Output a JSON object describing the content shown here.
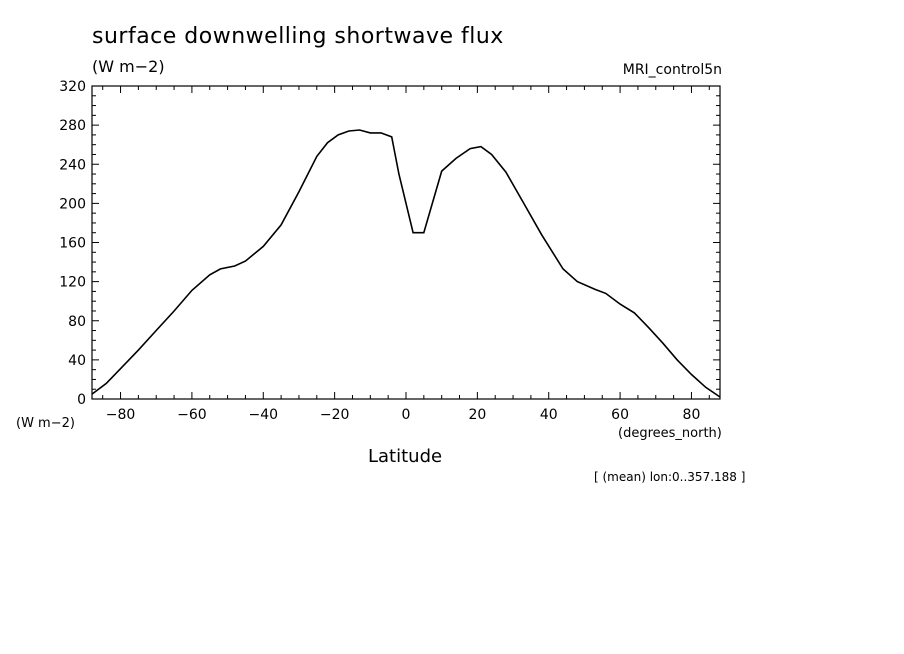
{
  "header": {
    "title": "surface downwelling shortwave flux",
    "units": "(W m−2)",
    "model": "MRI_control5n",
    "units_left": "(W m−2)",
    "x_units": "(degrees_north)",
    "note": "[ (mean) lon:0..357.188 ]"
  },
  "chart_data": {
    "type": "line",
    "title": "surface downwelling shortwave flux",
    "xlabel": "Latitude",
    "ylabel": "(W m−2)",
    "xlim": [
      -88,
      88
    ],
    "ylim": [
      0,
      320
    ],
    "xticks": [
      -80,
      -60,
      -40,
      -20,
      0,
      20,
      40,
      60,
      80
    ],
    "xtick_labels": [
      "−80",
      "−60",
      "−40",
      "−20",
      "0",
      "20",
      "40",
      "60",
      "80"
    ],
    "yticks": [
      0,
      40,
      80,
      120,
      160,
      200,
      240,
      280,
      320
    ],
    "ytick_labels": [
      "0",
      "40",
      "80",
      "120",
      "160",
      "200",
      "240",
      "280",
      "320"
    ],
    "grid": false,
    "series": [
      {
        "color": "#000000",
        "x": [
          -88,
          -84,
          -80,
          -75,
          -70,
          -65,
          -60,
          -55,
          -52,
          -48,
          -45,
          -40,
          -35,
          -30,
          -25,
          -22,
          -19,
          -16,
          -13,
          -10,
          -7,
          -4,
          -2,
          2,
          5,
          10,
          14,
          18,
          21,
          24,
          28,
          33,
          38,
          44,
          48,
          53,
          56,
          60,
          64,
          68,
          72,
          76,
          80,
          84,
          88
        ],
        "y": [
          5,
          16,
          31,
          50,
          70,
          90,
          111,
          127,
          133,
          136,
          141,
          156,
          178,
          212,
          248,
          262,
          270,
          274,
          275,
          272,
          272,
          268,
          230,
          170,
          170,
          233,
          246,
          256,
          258,
          250,
          232,
          200,
          168,
          133,
          120,
          112,
          108,
          97,
          88,
          73,
          57,
          40,
          25,
          12,
          2
        ]
      }
    ]
  }
}
